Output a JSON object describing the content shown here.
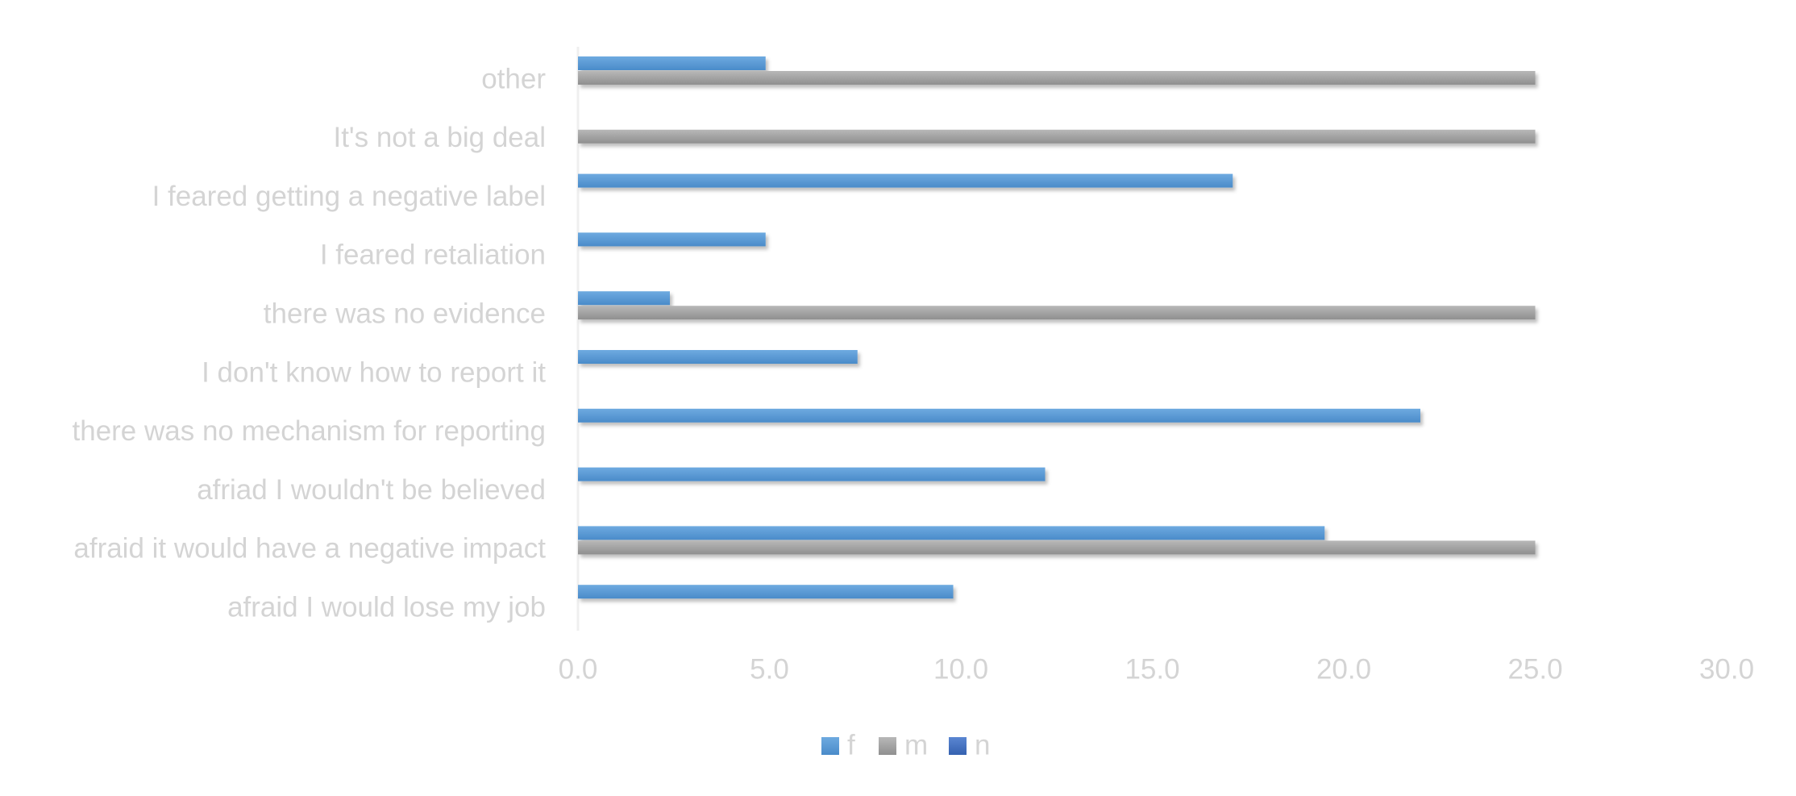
{
  "chart_data": {
    "type": "bar",
    "orientation": "horizontal",
    "title": "",
    "xlabel": "",
    "ylabel": "",
    "categories": [
      "afraid I would lose my job",
      "afraid it would have a negative impact",
      "afriad I wouldn't be believed",
      "there was no mechanism for reporting",
      "I don't know how to report it",
      "there was no evidence",
      "I feared retaliation",
      "I feared getting a negative label",
      "It's not a big deal",
      "other"
    ],
    "series": [
      {
        "name": "f",
        "color": "#5b9bd5",
        "values": [
          9.8,
          19.5,
          12.2,
          22.0,
          7.3,
          2.4,
          4.9,
          17.1,
          0,
          4.9
        ]
      },
      {
        "name": "m",
        "color": "#a5a5a5",
        "values": [
          0,
          25.0,
          0,
          0,
          0,
          25.0,
          0,
          0,
          25.0,
          25.0
        ]
      },
      {
        "name": "n",
        "color": "#4472c4",
        "values": [
          0,
          0,
          0,
          0,
          0,
          0,
          0,
          0,
          0,
          0
        ]
      }
    ],
    "xlim": [
      0,
      30
    ],
    "xticks": [
      "0.0",
      "5.0",
      "10.0",
      "15.0",
      "20.0",
      "25.0",
      "30.0"
    ],
    "grid": false,
    "legend": {
      "position": "bottom",
      "entries": [
        "f",
        "m",
        "n"
      ]
    }
  }
}
